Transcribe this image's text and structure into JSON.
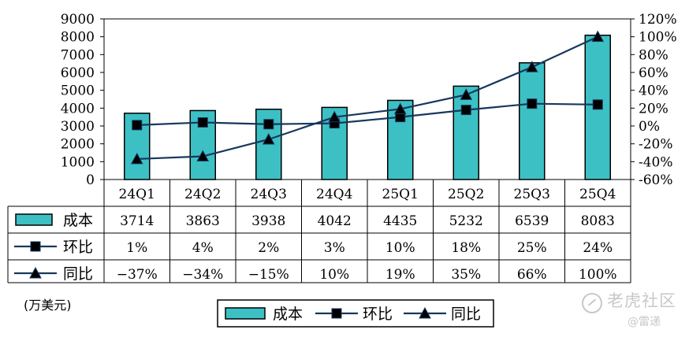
{
  "chart_data": {
    "type": "bar",
    "categories": [
      "24Q1",
      "24Q2",
      "24Q3",
      "24Q4",
      "25Q1",
      "25Q2",
      "25Q3",
      "25Q4"
    ],
    "series": [
      {
        "name": "成本",
        "type": "bar",
        "axis": "left",
        "values": [
          3714,
          3863,
          3938,
          4042,
          4435,
          5232,
          6539,
          8083
        ],
        "labels": [
          "3714",
          "3863",
          "3938",
          "4042",
          "4435",
          "5232",
          "6539",
          "8083"
        ]
      },
      {
        "name": "环比",
        "type": "line",
        "marker": "square",
        "axis": "right",
        "values": [
          1,
          4,
          2,
          3,
          10,
          18,
          25,
          24
        ],
        "labels": [
          "1%",
          "4%",
          "2%",
          "3%",
          "10%",
          "18%",
          "25%",
          "24%"
        ]
      },
      {
        "name": "同比",
        "type": "line",
        "marker": "triangle",
        "axis": "right",
        "values": [
          -37,
          -34,
          -15,
          10,
          19,
          35,
          66,
          100
        ],
        "labels": [
          "−37%",
          "−34%",
          "−15%",
          "10%",
          "19%",
          "35%",
          "66%",
          "100%"
        ]
      }
    ],
    "ylim_left": [
      0,
      9000
    ],
    "yticks_left": [
      "0",
      "1000",
      "2000",
      "3000",
      "4000",
      "5000",
      "6000",
      "7000",
      "8000",
      "9000"
    ],
    "ylim_right": [
      -60,
      120
    ],
    "yticks_right": [
      "-60%",
      "-40%",
      "-20%",
      "0%",
      "20%",
      "40%",
      "60%",
      "80%",
      "100%",
      "120%"
    ],
    "unit_label": "(万美元)",
    "legend_position": "bottom",
    "data_table": true,
    "grid": false,
    "colors": {
      "bar": "#3cc0c4",
      "line": "#17375e",
      "marker": "#000000"
    }
  },
  "watermark": {
    "text": "老虎社区",
    "sub": "@雷递"
  }
}
